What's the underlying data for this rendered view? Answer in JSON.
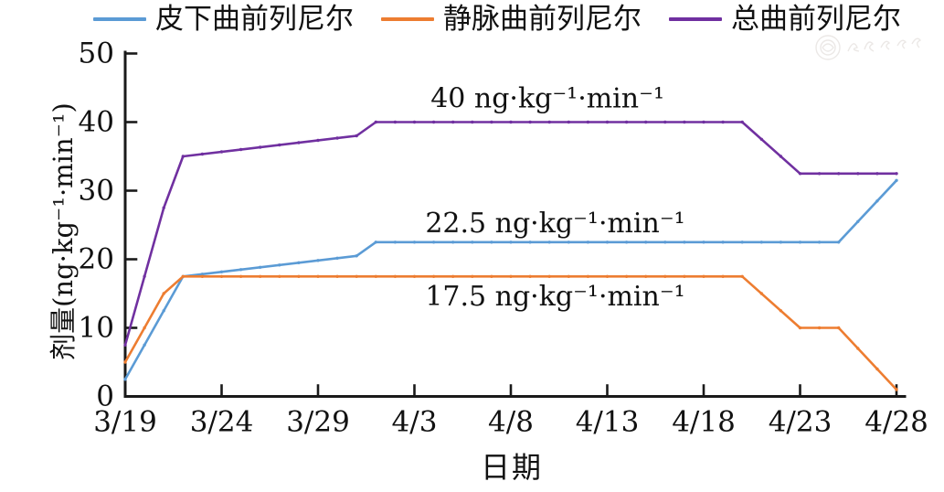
{
  "chart_data": {
    "type": "line",
    "title": "",
    "xlabel": "日期",
    "ylabel": "剂量(ng·kg⁻¹·min⁻¹)",
    "ylim": [
      0,
      50
    ],
    "y_ticks": [
      0,
      10,
      20,
      30,
      40,
      50
    ],
    "x_ticks": [
      "3/19",
      "3/24",
      "3/29",
      "4/3",
      "4/8",
      "4/13",
      "4/18",
      "4/23",
      "4/28"
    ],
    "x_start_date": "3/19",
    "x_end_date": "4/28",
    "grid": false,
    "legend_position": "top",
    "axis_color": "#1a1a1a",
    "series": [
      {
        "name": "皮下曲前列尼尔",
        "color": "#5B9BD5",
        "points": [
          [
            "3/19",
            2.5
          ],
          [
            "3/21",
            12.5
          ],
          [
            "3/22",
            17.5
          ],
          [
            "3/31",
            20.5
          ],
          [
            "4/1",
            22.5
          ],
          [
            "4/25",
            22.5
          ],
          [
            "4/28",
            31.5
          ]
        ]
      },
      {
        "name": "静脉曲前列尼尔",
        "color": "#ED7D31",
        "points": [
          [
            "3/19",
            5
          ],
          [
            "3/21",
            15
          ],
          [
            "3/22",
            17.5
          ],
          [
            "4/20",
            17.5
          ],
          [
            "4/23",
            10
          ],
          [
            "4/25",
            10
          ],
          [
            "4/28",
            1
          ]
        ]
      },
      {
        "name": "总曲前列尼尔",
        "color": "#7030A0",
        "points": [
          [
            "3/19",
            7.5
          ],
          [
            "3/21",
            27.5
          ],
          [
            "3/22",
            35
          ],
          [
            "3/31",
            38
          ],
          [
            "4/1",
            40
          ],
          [
            "4/20",
            40
          ],
          [
            "4/23",
            32.5
          ],
          [
            "4/28",
            32.5
          ]
        ]
      }
    ],
    "annotations": [
      {
        "text": "40 ng·kg⁻¹·min⁻¹",
        "day": 21.9,
        "value": 43.5
      },
      {
        "text": "22.5 ng·kg⁻¹·min⁻¹",
        "day": 22.3,
        "value": 25.3
      },
      {
        "text": "17.5 ng·kg⁻¹·min⁻¹",
        "day": 22.3,
        "value": 14.6
      }
    ]
  },
  "watermark": {
    "present": true,
    "note": "faint circular seal with script, illegible"
  }
}
